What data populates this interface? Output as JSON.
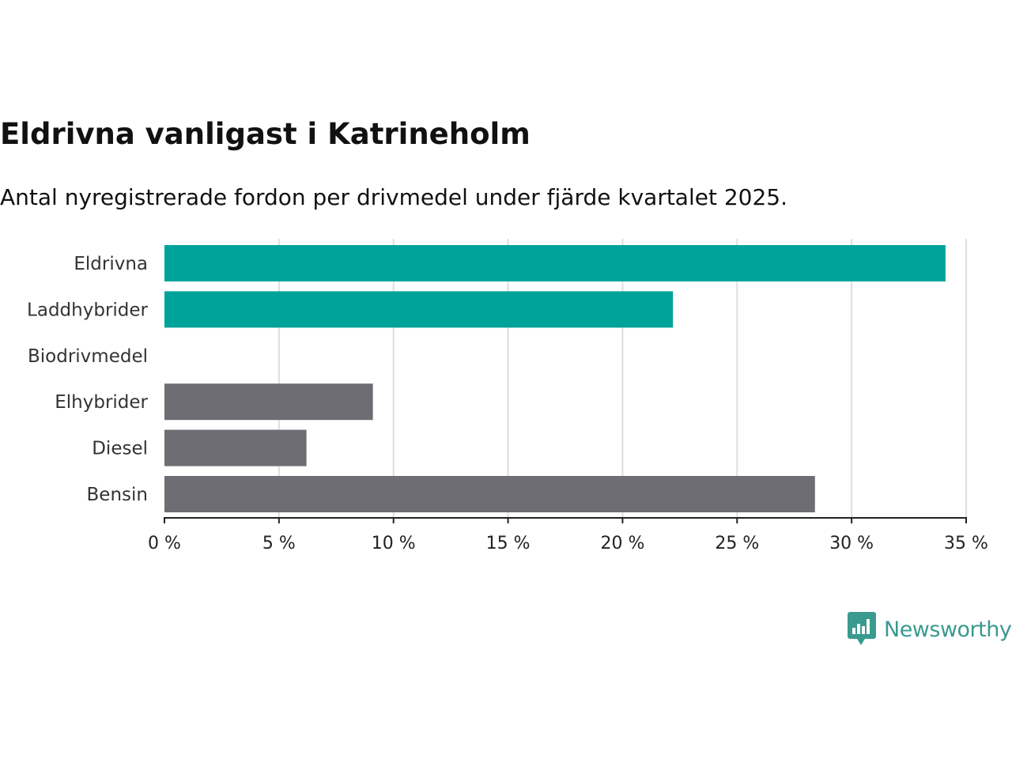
{
  "chart_data": {
    "type": "bar",
    "orientation": "horizontal",
    "title": "Eldrivna vanligast i Katrineholm",
    "subtitle": "Antal nyregistrerade fordon per drivmedel under fjärde kvartalet 2025.",
    "categories": [
      "Eldrivna",
      "Laddhybrider",
      "Biodrivmedel",
      "Elhybrider",
      "Diesel",
      "Bensin"
    ],
    "values": [
      34.1,
      22.2,
      0,
      9.1,
      6.2,
      28.4
    ],
    "bar_colors": [
      "#00a39a",
      "#00a39a",
      "#00a39a",
      "#6e6d73",
      "#6e6d73",
      "#6e6d73"
    ],
    "xlim": [
      0,
      35
    ],
    "xticks": [
      0,
      5,
      10,
      15,
      20,
      25,
      30,
      35
    ],
    "xtick_labels": [
      "0 %",
      "5 %",
      "10 %",
      "15 %",
      "20 %",
      "25 %",
      "30 %",
      "35 %"
    ],
    "xlabel": "",
    "ylabel": "",
    "unit": "%",
    "grid": true
  },
  "brand": {
    "name": "Newsworthy",
    "icon": "newsworthy-logo-icon",
    "color": "#3a9a8f"
  }
}
